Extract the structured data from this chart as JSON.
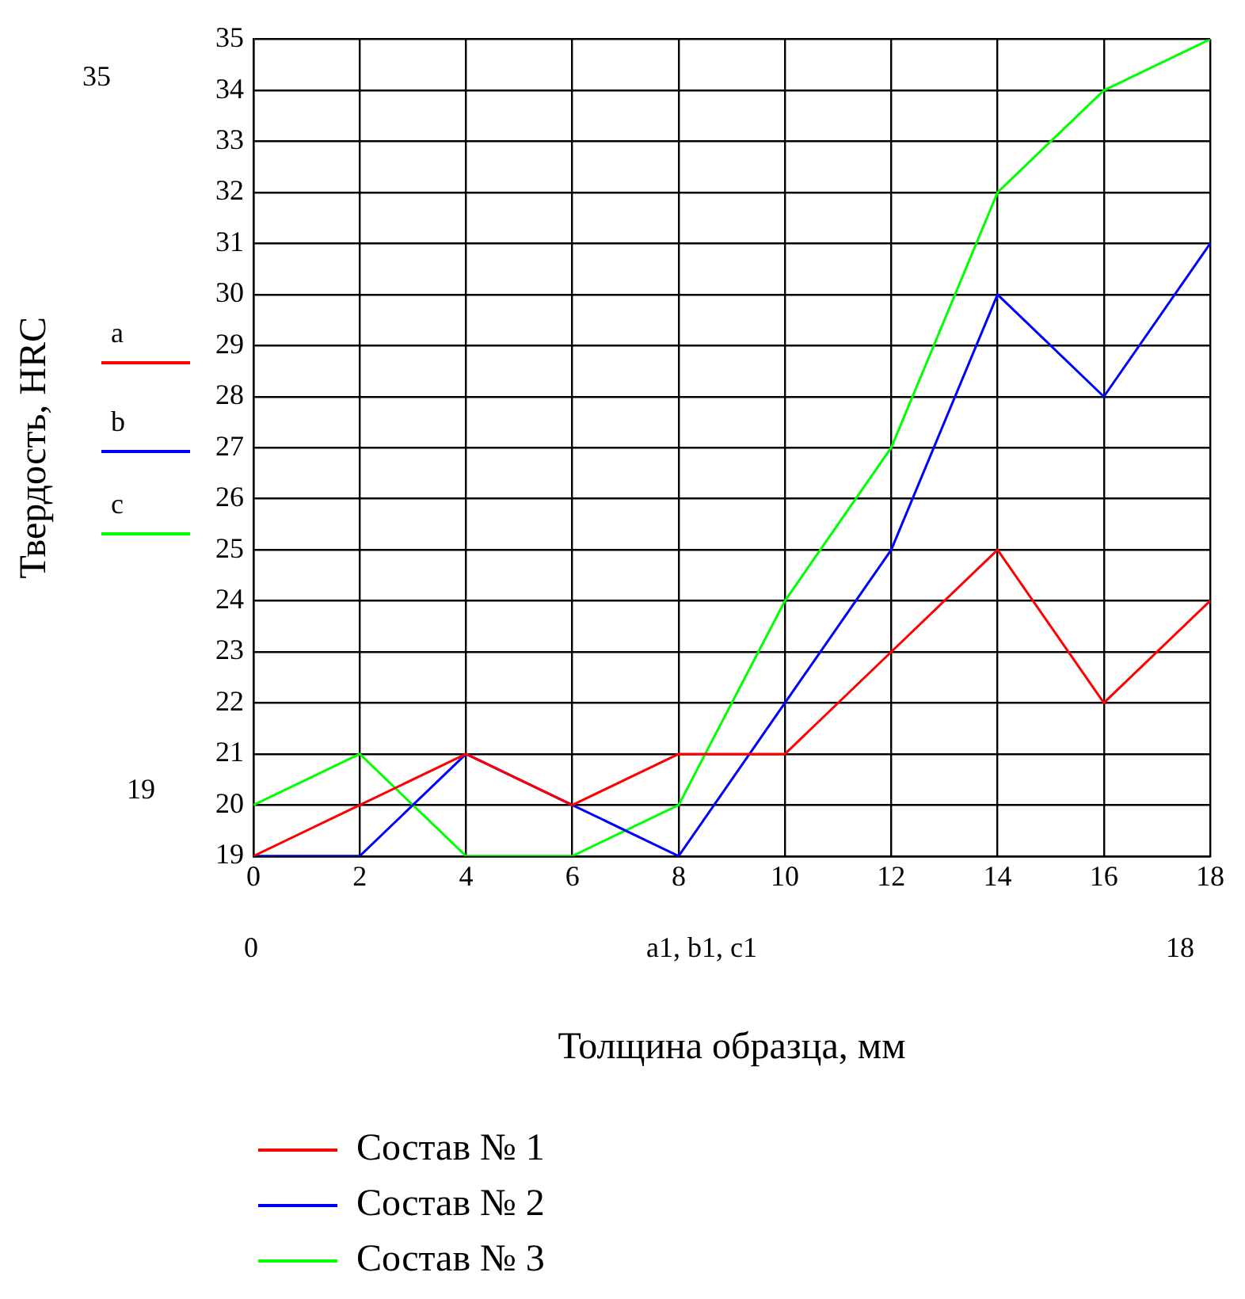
{
  "chart_data": {
    "type": "line",
    "xlabel": "Толщина образца, мм",
    "ylabel": "Твердость, HRC",
    "x": [
      0,
      2,
      4,
      6,
      8,
      10,
      12,
      14,
      16,
      18
    ],
    "series": [
      {
        "name": "Состав № 1",
        "color": "#ff0000",
        "values": [
          19,
          20,
          21,
          20,
          21,
          21,
          23,
          25,
          22,
          24
        ]
      },
      {
        "name": "Состав № 2",
        "color": "#0000ff",
        "values": [
          19,
          19,
          21,
          20,
          19,
          22,
          25,
          30,
          28,
          31
        ]
      },
      {
        "name": "Состав № 3",
        "color": "#00ff00",
        "values": [
          20,
          21,
          19,
          19,
          20,
          24,
          27,
          32,
          34,
          35
        ]
      }
    ],
    "xlim": [
      0,
      18
    ],
    "xticks": [
      0,
      2,
      4,
      6,
      8,
      10,
      12,
      14,
      16,
      18
    ],
    "ylim": [
      19,
      35
    ],
    "yticks": [
      19,
      20,
      21,
      22,
      23,
      24,
      25,
      26,
      27,
      28,
      29,
      30,
      31,
      32,
      33,
      34,
      35
    ],
    "grid": true,
    "legend": "bottom",
    "marker": "none",
    "line_style": "solid",
    "annotations": [
      "35",
      "19",
      "0",
      "a1, b1, c1",
      "18",
      "a",
      "b",
      "c"
    ]
  }
}
